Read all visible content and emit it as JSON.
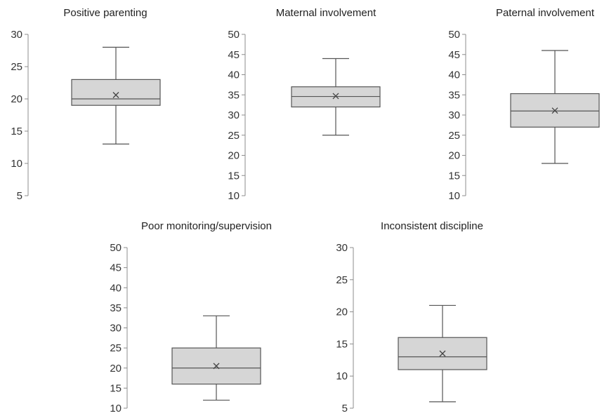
{
  "chart_data": [
    {
      "type": "box",
      "title": "Positive parenting",
      "ylim": [
        5,
        30
      ],
      "yticks": [
        "5",
        "10",
        "15",
        "20",
        "25",
        "30"
      ],
      "whisker_low": 13,
      "q1": 19,
      "median": 20,
      "q3": 23,
      "whisker_high": 28,
      "mean": 20.6,
      "grid": false,
      "legend": "none"
    },
    {
      "type": "box",
      "title": "Maternal involvement",
      "ylim": [
        10,
        50
      ],
      "yticks": [
        "10",
        "15",
        "20",
        "25",
        "30",
        "35",
        "40",
        "45",
        "50"
      ],
      "whisker_low": 25,
      "q1": 32,
      "median": 34.6,
      "q3": 37,
      "whisker_high": 44,
      "mean": 34.7,
      "grid": false,
      "legend": "none"
    },
    {
      "type": "box",
      "title": "Paternal involvement",
      "ylim": [
        10,
        50
      ],
      "yticks": [
        "10",
        "15",
        "20",
        "25",
        "30",
        "35",
        "40",
        "45",
        "50"
      ],
      "whisker_low": 18,
      "q1": 27,
      "median": 31,
      "q3": 35.3,
      "whisker_high": 46,
      "mean": 31.1,
      "grid": false,
      "legend": "none"
    },
    {
      "type": "box",
      "title": "Poor monitoring/supervision",
      "ylim": [
        10,
        50
      ],
      "yticks": [
        "10",
        "15",
        "20",
        "25",
        "30",
        "35",
        "40",
        "45",
        "50"
      ],
      "whisker_low": 12,
      "q1": 16,
      "median": 20,
      "q3": 25,
      "whisker_high": 33,
      "mean": 20.5,
      "grid": false,
      "legend": "none"
    },
    {
      "type": "box",
      "title": "Inconsistent discipline",
      "ylim": [
        5,
        30
      ],
      "yticks": [
        "5",
        "10",
        "15",
        "20",
        "25",
        "30"
      ],
      "whisker_low": 6,
      "q1": 11,
      "median": 13,
      "q3": 16,
      "whisker_high": 21,
      "mean": 13.5,
      "grid": false,
      "legend": "none"
    }
  ],
  "colors": {
    "box_fill": "#d6d6d6",
    "box_stroke": "#555555",
    "axis": "#8c8c8c",
    "text": "#222222"
  }
}
